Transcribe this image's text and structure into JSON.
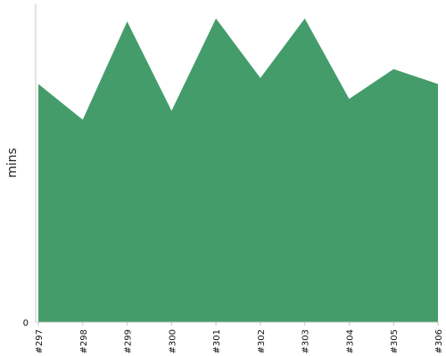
{
  "chart_data": {
    "type": "area",
    "ylabel": "mins",
    "y_ticks": [
      "0"
    ],
    "ylim": [
      0,
      10.7
    ],
    "categories": [
      "#297",
      "#298",
      "#299",
      "#300",
      "#301",
      "#302",
      "#303",
      "#304",
      "#305",
      "#306"
    ],
    "series": [
      {
        "values": [
          8.0,
          6.8,
          10.1,
          7.1,
          10.2,
          8.2,
          10.2,
          7.5,
          8.5,
          8.0
        ],
        "color": "#449c6b"
      }
    ],
    "grid": false
  }
}
